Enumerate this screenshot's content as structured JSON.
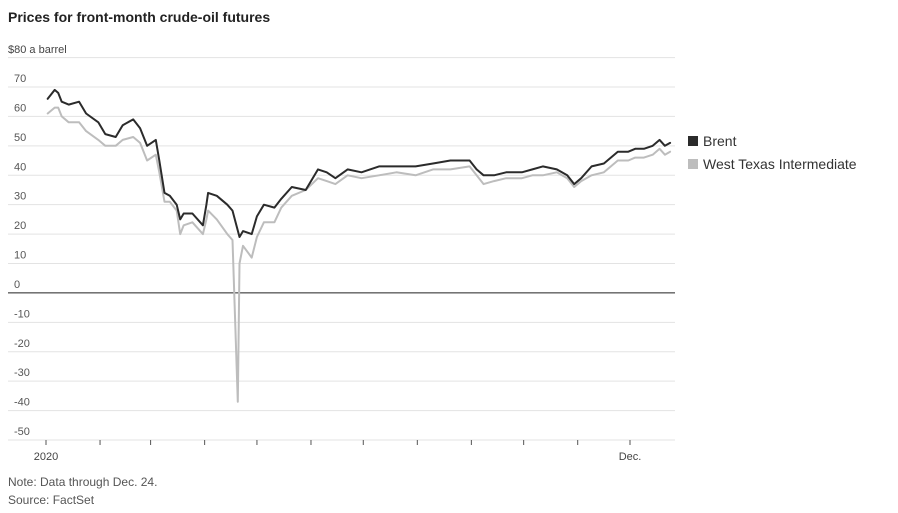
{
  "title": "Prices for front-month crude-oil futures",
  "unit_label": "$80 a barrel",
  "note": "Note: Data through Dec. 24.",
  "source": "Source: FactSet",
  "colors": {
    "brent": "#2b2b2b",
    "wti": "#bdbdbd",
    "grid": "#e3e3e3",
    "zero": "#222222"
  },
  "chart_data": {
    "type": "line",
    "title": "Prices for front-month crude-oil futures",
    "xlabel": "",
    "ylabel": "$80 a barrel",
    "ylim": [
      -50,
      80
    ],
    "xlim": [
      "2020-01-01",
      "2020-12-24"
    ],
    "grid": true,
    "legend_position": "right",
    "y_ticks": [
      70,
      60,
      50,
      40,
      30,
      20,
      10,
      0,
      -10,
      -20,
      -30,
      -40,
      -50
    ],
    "y_tick_labels": [
      "70",
      "60",
      "50",
      "40",
      "30",
      "20",
      "10",
      "0",
      "-10",
      "-20",
      "-30",
      "-40",
      "-50"
    ],
    "x_tick_labels": [
      {
        "date": "2020-01-01",
        "label": "2020"
      },
      {
        "date": "2020-12-01",
        "label": "Dec."
      }
    ],
    "series": [
      {
        "name": "Brent",
        "points": [
          [
            "2020-01-02",
            66
          ],
          [
            "2020-01-06",
            69
          ],
          [
            "2020-01-08",
            68
          ],
          [
            "2020-01-10",
            65
          ],
          [
            "2020-01-14",
            64
          ],
          [
            "2020-01-20",
            65
          ],
          [
            "2020-01-24",
            61
          ],
          [
            "2020-01-31",
            58
          ],
          [
            "2020-02-04",
            54
          ],
          [
            "2020-02-10",
            53
          ],
          [
            "2020-02-14",
            57
          ],
          [
            "2020-02-20",
            59
          ],
          [
            "2020-02-24",
            56
          ],
          [
            "2020-02-28",
            50
          ],
          [
            "2020-03-04",
            52
          ],
          [
            "2020-03-06",
            45
          ],
          [
            "2020-03-09",
            34
          ],
          [
            "2020-03-12",
            33
          ],
          [
            "2020-03-16",
            30
          ],
          [
            "2020-03-18",
            25
          ],
          [
            "2020-03-20",
            27
          ],
          [
            "2020-03-25",
            27
          ],
          [
            "2020-03-31",
            23
          ],
          [
            "2020-04-02",
            30
          ],
          [
            "2020-04-03",
            34
          ],
          [
            "2020-04-08",
            33
          ],
          [
            "2020-04-14",
            30
          ],
          [
            "2020-04-17",
            28
          ],
          [
            "2020-04-21",
            19
          ],
          [
            "2020-04-23",
            21
          ],
          [
            "2020-04-28",
            20
          ],
          [
            "2020-05-01",
            26
          ],
          [
            "2020-05-05",
            30
          ],
          [
            "2020-05-11",
            29
          ],
          [
            "2020-05-15",
            32
          ],
          [
            "2020-05-21",
            36
          ],
          [
            "2020-05-29",
            35
          ],
          [
            "2020-06-05",
            42
          ],
          [
            "2020-06-10",
            41
          ],
          [
            "2020-06-15",
            39
          ],
          [
            "2020-06-22",
            42
          ],
          [
            "2020-06-30",
            41
          ],
          [
            "2020-07-10",
            43
          ],
          [
            "2020-07-20",
            43
          ],
          [
            "2020-07-31",
            43
          ],
          [
            "2020-08-10",
            44
          ],
          [
            "2020-08-20",
            45
          ],
          [
            "2020-08-31",
            45
          ],
          [
            "2020-09-04",
            42
          ],
          [
            "2020-09-08",
            40
          ],
          [
            "2020-09-14",
            40
          ],
          [
            "2020-09-21",
            41
          ],
          [
            "2020-09-30",
            41
          ],
          [
            "2020-10-06",
            42
          ],
          [
            "2020-10-12",
            43
          ],
          [
            "2020-10-20",
            42
          ],
          [
            "2020-10-26",
            40
          ],
          [
            "2020-10-30",
            37
          ],
          [
            "2020-11-03",
            39
          ],
          [
            "2020-11-09",
            43
          ],
          [
            "2020-11-16",
            44
          ],
          [
            "2020-11-24",
            48
          ],
          [
            "2020-11-30",
            48
          ],
          [
            "2020-12-04",
            49
          ],
          [
            "2020-12-09",
            49
          ],
          [
            "2020-12-14",
            50
          ],
          [
            "2020-12-18",
            52
          ],
          [
            "2020-12-21",
            50
          ],
          [
            "2020-12-24",
            51
          ]
        ]
      },
      {
        "name": "West Texas Intermediate",
        "points": [
          [
            "2020-01-02",
            61
          ],
          [
            "2020-01-06",
            63
          ],
          [
            "2020-01-08",
            63
          ],
          [
            "2020-01-10",
            60
          ],
          [
            "2020-01-14",
            58
          ],
          [
            "2020-01-20",
            58
          ],
          [
            "2020-01-24",
            55
          ],
          [
            "2020-01-31",
            52
          ],
          [
            "2020-02-04",
            50
          ],
          [
            "2020-02-10",
            50
          ],
          [
            "2020-02-14",
            52
          ],
          [
            "2020-02-20",
            53
          ],
          [
            "2020-02-24",
            51
          ],
          [
            "2020-02-28",
            45
          ],
          [
            "2020-03-04",
            47
          ],
          [
            "2020-03-06",
            41
          ],
          [
            "2020-03-09",
            31
          ],
          [
            "2020-03-12",
            31
          ],
          [
            "2020-03-16",
            28
          ],
          [
            "2020-03-18",
            20
          ],
          [
            "2020-03-20",
            23
          ],
          [
            "2020-03-25",
            24
          ],
          [
            "2020-03-31",
            20
          ],
          [
            "2020-04-02",
            25
          ],
          [
            "2020-04-03",
            28
          ],
          [
            "2020-04-08",
            25
          ],
          [
            "2020-04-14",
            20
          ],
          [
            "2020-04-17",
            18
          ],
          [
            "2020-04-20",
            -37
          ],
          [
            "2020-04-21",
            10
          ],
          [
            "2020-04-23",
            16
          ],
          [
            "2020-04-28",
            12
          ],
          [
            "2020-05-01",
            19
          ],
          [
            "2020-05-05",
            24
          ],
          [
            "2020-05-11",
            24
          ],
          [
            "2020-05-15",
            29
          ],
          [
            "2020-05-21",
            33
          ],
          [
            "2020-05-29",
            35
          ],
          [
            "2020-06-05",
            39
          ],
          [
            "2020-06-10",
            38
          ],
          [
            "2020-06-15",
            37
          ],
          [
            "2020-06-22",
            40
          ],
          [
            "2020-06-30",
            39
          ],
          [
            "2020-07-10",
            40
          ],
          [
            "2020-07-20",
            41
          ],
          [
            "2020-07-31",
            40
          ],
          [
            "2020-08-10",
            42
          ],
          [
            "2020-08-20",
            42
          ],
          [
            "2020-08-31",
            43
          ],
          [
            "2020-09-04",
            40
          ],
          [
            "2020-09-08",
            37
          ],
          [
            "2020-09-14",
            38
          ],
          [
            "2020-09-21",
            39
          ],
          [
            "2020-09-30",
            39
          ],
          [
            "2020-10-06",
            40
          ],
          [
            "2020-10-12",
            40
          ],
          [
            "2020-10-20",
            41
          ],
          [
            "2020-10-26",
            39
          ],
          [
            "2020-10-30",
            36
          ],
          [
            "2020-11-03",
            38
          ],
          [
            "2020-11-09",
            40
          ],
          [
            "2020-11-16",
            41
          ],
          [
            "2020-11-24",
            45
          ],
          [
            "2020-11-30",
            45
          ],
          [
            "2020-12-04",
            46
          ],
          [
            "2020-12-09",
            46
          ],
          [
            "2020-12-14",
            47
          ],
          [
            "2020-12-18",
            49
          ],
          [
            "2020-12-21",
            47
          ],
          [
            "2020-12-24",
            48
          ]
        ]
      }
    ]
  }
}
